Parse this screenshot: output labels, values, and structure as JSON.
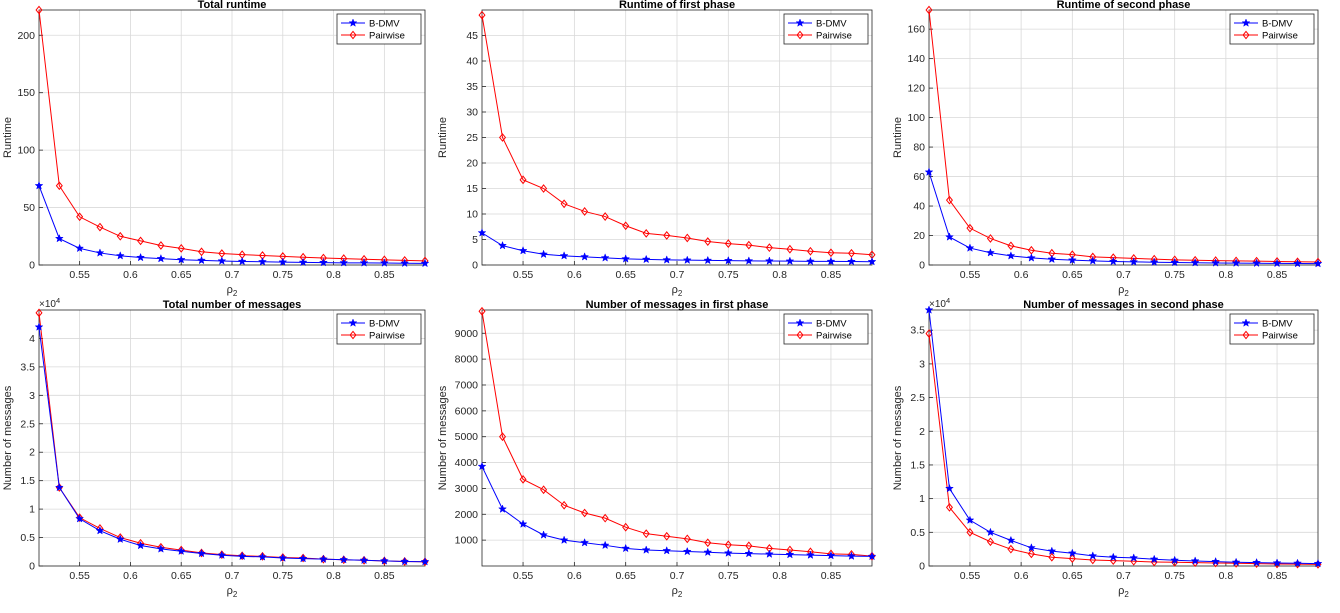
{
  "colors": {
    "bdmv": "#0000ff",
    "pairwise": "#ff0000",
    "grid": "#d9d9d9",
    "axis": "#262626"
  },
  "chart_data": [
    {
      "type": "line",
      "title": "Total runtime",
      "xlabel": "ρ",
      "xlabel_subscript": "2",
      "ylabel": "Runtime",
      "exponent": "",
      "xlim": [
        0.51,
        0.89
      ],
      "ylim": [
        0,
        222
      ],
      "xticks": [
        0.55,
        0.6,
        0.65,
        0.7,
        0.75,
        0.8,
        0.85
      ],
      "xtick_labels": [
        "0.55",
        "0.6",
        "0.65",
        "0.7",
        "0.75",
        "0.8",
        "0.85"
      ],
      "yticks": [
        0,
        50,
        100,
        150,
        200
      ],
      "ytick_labels": [
        "0",
        "50",
        "100",
        "150",
        "200"
      ],
      "grid": true,
      "legend_position": "top-right",
      "x": [
        0.51,
        0.53,
        0.55,
        0.57,
        0.59,
        0.61,
        0.63,
        0.65,
        0.67,
        0.69,
        0.71,
        0.73,
        0.75,
        0.77,
        0.79,
        0.81,
        0.83,
        0.85,
        0.87,
        0.89
      ],
      "series": [
        {
          "name": "B-DMV",
          "marker": "star",
          "values": [
            69,
            23,
            14.5,
            10.5,
            8,
            6.5,
            5.5,
            4.6,
            4,
            3.5,
            3.1,
            2.8,
            2.5,
            2.3,
            2.1,
            1.9,
            1.8,
            1.7,
            1.5,
            1.4
          ]
        },
        {
          "name": "Pairwise",
          "marker": "diamond",
          "values": [
            222,
            69,
            42,
            33,
            25,
            21,
            17,
            14.5,
            11.5,
            10,
            9,
            8.3,
            7.5,
            6.8,
            6.1,
            5.6,
            5,
            4.5,
            4,
            3.6
          ]
        }
      ]
    },
    {
      "type": "line",
      "title": "Runtime of first phase",
      "xlabel": "ρ",
      "xlabel_subscript": "2",
      "ylabel": "Runtime",
      "exponent": "",
      "xlim": [
        0.51,
        0.89
      ],
      "ylim": [
        0,
        50
      ],
      "xticks": [
        0.55,
        0.6,
        0.65,
        0.7,
        0.75,
        0.8,
        0.85
      ],
      "xtick_labels": [
        "0.55",
        "0.6",
        "0.65",
        "0.7",
        "0.75",
        "0.8",
        "0.85"
      ],
      "yticks": [
        0,
        5,
        10,
        15,
        20,
        25,
        30,
        35,
        40,
        45
      ],
      "ytick_labels": [
        "0",
        "5",
        "10",
        "15",
        "20",
        "25",
        "30",
        "35",
        "40",
        "45"
      ],
      "grid": true,
      "legend_position": "top-right",
      "x": [
        0.51,
        0.53,
        0.55,
        0.57,
        0.59,
        0.61,
        0.63,
        0.65,
        0.67,
        0.69,
        0.71,
        0.73,
        0.75,
        0.77,
        0.79,
        0.81,
        0.83,
        0.85,
        0.87,
        0.89
      ],
      "series": [
        {
          "name": "B-DMV",
          "marker": "star",
          "values": [
            6.3,
            3.8,
            2.8,
            2.1,
            1.8,
            1.6,
            1.4,
            1.2,
            1.1,
            1.0,
            0.95,
            0.9,
            0.85,
            0.8,
            0.78,
            0.75,
            0.72,
            0.7,
            0.68,
            0.65
          ]
        },
        {
          "name": "Pairwise",
          "marker": "diamond",
          "values": [
            49,
            25,
            16.7,
            15,
            12,
            10.5,
            9.5,
            7.7,
            6.2,
            5.8,
            5.3,
            4.6,
            4.2,
            3.9,
            3.4,
            3.1,
            2.7,
            2.4,
            2.3,
            2.0
          ]
        }
      ]
    },
    {
      "type": "line",
      "title": "Runtime of second phase",
      "xlabel": "ρ",
      "xlabel_subscript": "2",
      "ylabel": "Runtime",
      "exponent": "",
      "xlim": [
        0.51,
        0.89
      ],
      "ylim": [
        0,
        173
      ],
      "xticks": [
        0.55,
        0.6,
        0.65,
        0.7,
        0.75,
        0.8,
        0.85
      ],
      "xtick_labels": [
        "0.55",
        "0.6",
        "0.65",
        "0.7",
        "0.75",
        "0.8",
        "0.85"
      ],
      "yticks": [
        0,
        20,
        40,
        60,
        80,
        100,
        120,
        140,
        160
      ],
      "ytick_labels": [
        "0",
        "20",
        "40",
        "60",
        "80",
        "100",
        "120",
        "140",
        "160"
      ],
      "grid": true,
      "legend_position": "top-right",
      "x": [
        0.51,
        0.53,
        0.55,
        0.57,
        0.59,
        0.61,
        0.63,
        0.65,
        0.67,
        0.69,
        0.71,
        0.73,
        0.75,
        0.77,
        0.79,
        0.81,
        0.83,
        0.85,
        0.87,
        0.89
      ],
      "series": [
        {
          "name": "B-DMV",
          "marker": "star",
          "values": [
            63,
            19,
            11.5,
            8.3,
            6.2,
            4.8,
            3.9,
            3.3,
            2.8,
            2.4,
            2.1,
            1.9,
            1.7,
            1.5,
            1.4,
            1.3,
            1.2,
            1.1,
            1.0,
            0.9
          ]
        },
        {
          "name": "Pairwise",
          "marker": "diamond",
          "values": [
            173,
            44,
            25,
            18,
            13,
            10,
            8,
            7,
            5.5,
            5,
            4.5,
            4,
            3.5,
            3.2,
            3,
            2.8,
            2.6,
            2.4,
            2.2,
            2.0
          ]
        }
      ]
    },
    {
      "type": "line",
      "title": "Total number of messages",
      "xlabel": "ρ",
      "xlabel_subscript": "2",
      "ylabel": "Number of messages",
      "exponent": "×10",
      "exponent_power": "4",
      "xlim": [
        0.51,
        0.89
      ],
      "ylim": [
        0,
        4.5
      ],
      "xticks": [
        0.55,
        0.6,
        0.65,
        0.7,
        0.75,
        0.8,
        0.85
      ],
      "xtick_labels": [
        "0.55",
        "0.6",
        "0.65",
        "0.7",
        "0.75",
        "0.8",
        "0.85"
      ],
      "yticks": [
        0,
        0.5,
        1,
        1.5,
        2,
        2.5,
        3,
        3.5,
        4
      ],
      "ytick_labels": [
        "0",
        "0.5",
        "1",
        "1.5",
        "2",
        "2.5",
        "3",
        "3.5",
        "4"
      ],
      "grid": true,
      "legend_position": "top-right",
      "x": [
        0.51,
        0.53,
        0.55,
        0.57,
        0.59,
        0.61,
        0.63,
        0.65,
        0.67,
        0.69,
        0.71,
        0.73,
        0.75,
        0.77,
        0.79,
        0.81,
        0.83,
        0.85,
        0.87,
        0.89
      ],
      "series": [
        {
          "name": "B-DMV",
          "marker": "star",
          "values": [
            4.2,
            1.38,
            0.83,
            0.62,
            0.47,
            0.36,
            0.3,
            0.26,
            0.22,
            0.19,
            0.17,
            0.16,
            0.14,
            0.13,
            0.12,
            0.11,
            0.1,
            0.09,
            0.08,
            0.075
          ]
        },
        {
          "name": "Pairwise",
          "marker": "diamond",
          "values": [
            4.45,
            1.38,
            0.85,
            0.66,
            0.5,
            0.4,
            0.33,
            0.28,
            0.23,
            0.2,
            0.18,
            0.17,
            0.15,
            0.14,
            0.12,
            0.11,
            0.1,
            0.09,
            0.08,
            0.075
          ]
        }
      ]
    },
    {
      "type": "line",
      "title": "Number of messages in first phase",
      "xlabel": "ρ",
      "xlabel_subscript": "2",
      "ylabel": "Number of messages",
      "exponent": "",
      "xlim": [
        0.51,
        0.89
      ],
      "ylim": [
        0,
        9900
      ],
      "xticks": [
        0.55,
        0.6,
        0.65,
        0.7,
        0.75,
        0.8,
        0.85
      ],
      "xtick_labels": [
        "0.55",
        "0.6",
        "0.65",
        "0.7",
        "0.75",
        "0.8",
        "0.85"
      ],
      "yticks": [
        1000,
        2000,
        3000,
        4000,
        5000,
        6000,
        7000,
        8000,
        9000
      ],
      "ytick_labels": [
        "1000",
        "2000",
        "3000",
        "4000",
        "5000",
        "6000",
        "7000",
        "8000",
        "9000"
      ],
      "grid": true,
      "legend_position": "top-right",
      "x": [
        0.51,
        0.53,
        0.55,
        0.57,
        0.59,
        0.61,
        0.63,
        0.65,
        0.67,
        0.69,
        0.71,
        0.73,
        0.75,
        0.77,
        0.79,
        0.81,
        0.83,
        0.85,
        0.87,
        0.89
      ],
      "series": [
        {
          "name": "B-DMV",
          "marker": "star",
          "values": [
            3850,
            2200,
            1620,
            1200,
            1000,
            900,
            800,
            680,
            620,
            590,
            560,
            530,
            500,
            480,
            460,
            440,
            420,
            400,
            380,
            370
          ]
        },
        {
          "name": "Pairwise",
          "marker": "diamond",
          "values": [
            9850,
            5000,
            3350,
            2950,
            2350,
            2050,
            1850,
            1500,
            1250,
            1150,
            1050,
            900,
            820,
            780,
            680,
            620,
            550,
            470,
            450,
            380
          ]
        }
      ]
    },
    {
      "type": "line",
      "title": "Number of messages in second phase",
      "xlabel": "ρ",
      "xlabel_subscript": "2",
      "ylabel": "Number of messages",
      "exponent": "×10",
      "exponent_power": "4",
      "xlim": [
        0.51,
        0.89
      ],
      "ylim": [
        0,
        3.8
      ],
      "xticks": [
        0.55,
        0.6,
        0.65,
        0.7,
        0.75,
        0.8,
        0.85
      ],
      "xtick_labels": [
        "0.55",
        "0.6",
        "0.65",
        "0.7",
        "0.75",
        "0.8",
        "0.85"
      ],
      "yticks": [
        0,
        0.5,
        1,
        1.5,
        2,
        2.5,
        3,
        3.5
      ],
      "ytick_labels": [
        "0",
        "0.5",
        "1",
        "1.5",
        "2",
        "2.5",
        "3",
        "3.5"
      ],
      "grid": true,
      "legend_position": "top-right",
      "x": [
        0.51,
        0.53,
        0.55,
        0.57,
        0.59,
        0.61,
        0.63,
        0.65,
        0.67,
        0.69,
        0.71,
        0.73,
        0.75,
        0.77,
        0.79,
        0.81,
        0.83,
        0.85,
        0.87,
        0.89
      ],
      "series": [
        {
          "name": "B-DMV",
          "marker": "star",
          "values": [
            3.8,
            1.15,
            0.68,
            0.5,
            0.38,
            0.27,
            0.22,
            0.19,
            0.15,
            0.13,
            0.12,
            0.1,
            0.085,
            0.075,
            0.065,
            0.055,
            0.05,
            0.045,
            0.04,
            0.035
          ]
        },
        {
          "name": "Pairwise",
          "marker": "diamond",
          "values": [
            3.45,
            0.87,
            0.5,
            0.36,
            0.25,
            0.18,
            0.13,
            0.11,
            0.09,
            0.08,
            0.07,
            0.06,
            0.055,
            0.05,
            0.045,
            0.04,
            0.035,
            0.03,
            0.028,
            0.025
          ]
        }
      ]
    }
  ]
}
